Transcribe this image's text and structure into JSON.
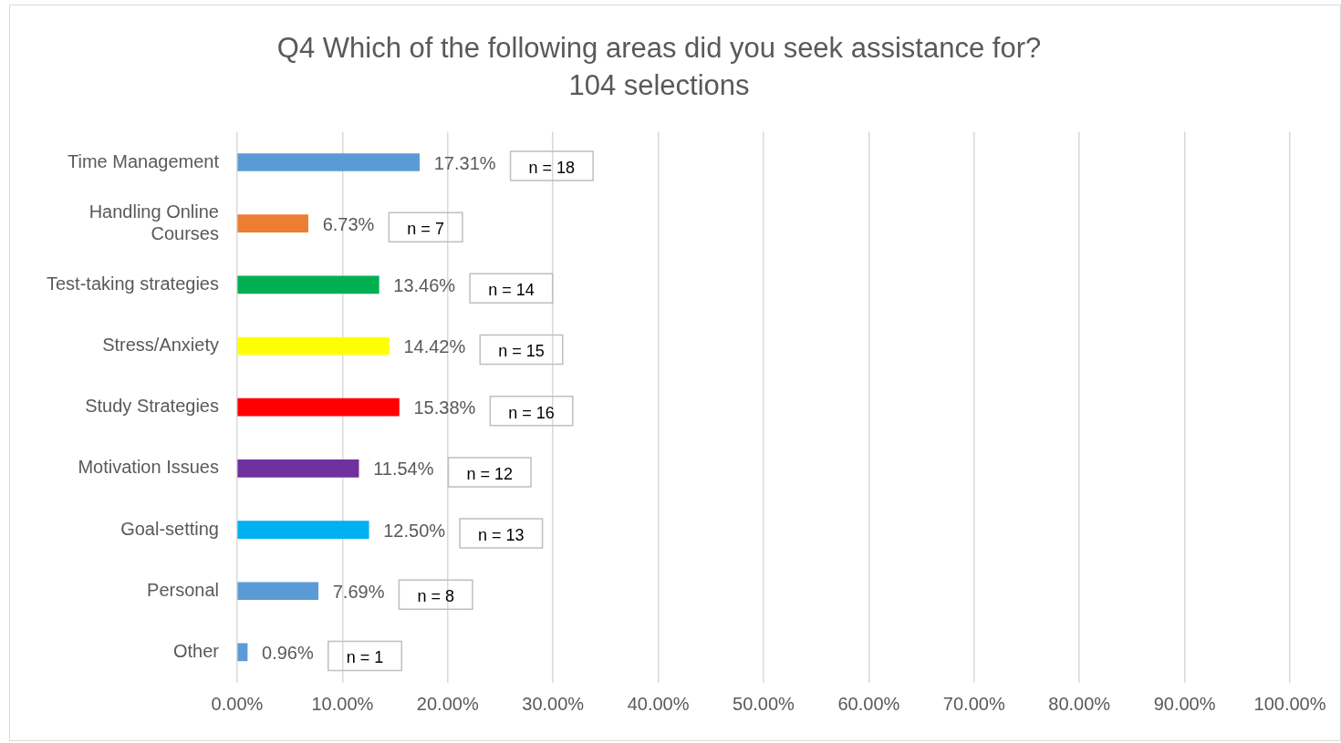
{
  "chart_data": {
    "type": "bar",
    "orientation": "horizontal",
    "title": "Q4 Which of the following areas did you seek assistance for?",
    "subtitle": "104 selections",
    "categories": [
      "Time Management",
      "Handling Online Courses",
      "Test-taking strategies",
      "Stress/Anxiety",
      "Study Strategies",
      "Motivation Issues",
      "Goal-setting",
      "Personal",
      "Other"
    ],
    "values": [
      17.31,
      6.73,
      13.46,
      14.42,
      15.38,
      11.54,
      12.5,
      7.69,
      0.96
    ],
    "value_labels": [
      "17.31%",
      "6.73%",
      "13.46%",
      "14.42%",
      "15.38%",
      "11.54%",
      "12.50%",
      "7.69%",
      "0.96%"
    ],
    "colors": [
      "#5b9bd5",
      "#ed7d31",
      "#00b050",
      "#ffff00",
      "#ff0000",
      "#7030a0",
      "#00b0f0",
      "#5b9bd5",
      "#5b9bd5"
    ],
    "xlim": [
      0,
      100
    ],
    "xticks": [
      {
        "value": 0,
        "label": "0.00%"
      },
      {
        "value": 10,
        "label": "10.00%"
      },
      {
        "value": 20,
        "label": "20.00%"
      },
      {
        "value": 30,
        "label": "30.00%"
      },
      {
        "value": 40,
        "label": "40.00%"
      },
      {
        "value": 50,
        "label": "50.00%"
      },
      {
        "value": 60,
        "label": "60.00%"
      },
      {
        "value": 70,
        "label": "70.00%"
      },
      {
        "value": 80,
        "label": "80.00%"
      },
      {
        "value": 90,
        "label": "90.00%"
      },
      {
        "value": 100,
        "label": "100.00%"
      }
    ],
    "grid": "x",
    "annotations": [
      "n = 18",
      "n = 7",
      "n = 14",
      "n = 15",
      "n = 16",
      "n = 12",
      "n = 13",
      "n = 8",
      "n = 1"
    ]
  }
}
